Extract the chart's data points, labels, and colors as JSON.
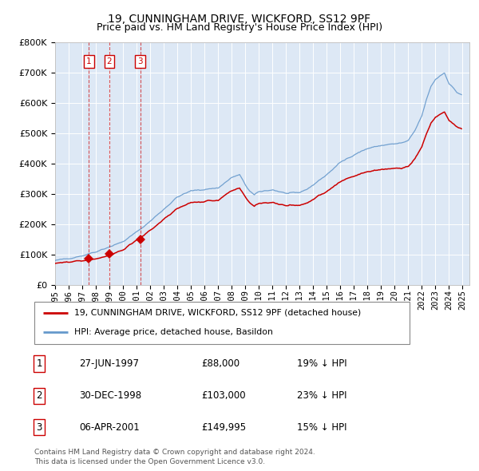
{
  "title": "19, CUNNINGHAM DRIVE, WICKFORD, SS12 9PF",
  "subtitle": "Price paid vs. HM Land Registry's House Price Index (HPI)",
  "legend_line1": "19, CUNNINGHAM DRIVE, WICKFORD, SS12 9PF (detached house)",
  "legend_line2": "HPI: Average price, detached house, Basildon",
  "footer1": "Contains HM Land Registry data © Crown copyright and database right 2024.",
  "footer2": "This data is licensed under the Open Government Licence v3.0.",
  "ylim": [
    0,
    800000
  ],
  "yticks": [
    0,
    100000,
    200000,
    300000,
    400000,
    500000,
    600000,
    700000,
    800000
  ],
  "xlim_start": 1995.0,
  "xlim_end": 2025.5,
  "red_color": "#cc0000",
  "blue_color": "#6699cc",
  "bg_color": "#dde8f5",
  "grid_color": "#ffffff",
  "vline_color": "#cc0000",
  "sale_dates_display": [
    "27-JUN-1997",
    "30-DEC-1998",
    "06-APR-2001"
  ],
  "sale_prices_display": [
    "£88,000",
    "£103,000",
    "£149,995"
  ],
  "sale_hpi_display": [
    "19% ↓ HPI",
    "23% ↓ HPI",
    "15% ↓ HPI"
  ],
  "sale_prices_num": [
    88000,
    103000,
    149995
  ],
  "sale_years": [
    1997.4863,
    1998.9973,
    2001.263
  ],
  "hpi_anchors_x": [
    0,
    6,
    12,
    18,
    24,
    30,
    36,
    42,
    48,
    54,
    60,
    66,
    72,
    78,
    84,
    90,
    96,
    102,
    108,
    114,
    120,
    126,
    132,
    138,
    144,
    150,
    156,
    160,
    163,
    168,
    172,
    176,
    180,
    186,
    192,
    198,
    204,
    210,
    216,
    222,
    228,
    234,
    240,
    246,
    252,
    258,
    264,
    270,
    276,
    282,
    288,
    294,
    300,
    306,
    312,
    318,
    324,
    328,
    332,
    336,
    340,
    344,
    348,
    352,
    355,
    359
  ],
  "hpi_anchors_y": [
    80000,
    84000,
    88000,
    92000,
    97000,
    103000,
    110000,
    118000,
    126000,
    134000,
    143000,
    158000,
    175000,
    192000,
    210000,
    230000,
    250000,
    270000,
    290000,
    300000,
    310000,
    313000,
    315000,
    318000,
    320000,
    337000,
    354000,
    360000,
    363000,
    330000,
    310000,
    296000,
    307000,
    311000,
    314000,
    308000,
    302000,
    302000,
    305000,
    315000,
    330000,
    347000,
    364000,
    384000,
    404000,
    417000,
    430000,
    440000,
    450000,
    455000,
    460000,
    463000,
    465000,
    468000,
    475000,
    510000,
    558000,
    610000,
    655000,
    678000,
    690000,
    700000,
    665000,
    648000,
    635000,
    628000
  ],
  "price_factor_x": [
    0,
    18,
    30,
    47,
    75,
    100,
    130,
    180,
    230,
    280,
    330,
    359
  ],
  "price_factor_y": [
    0.875,
    0.873,
    0.8,
    0.775,
    0.848,
    0.87,
    0.875,
    0.875,
    0.855,
    0.83,
    0.815,
    0.82
  ],
  "title_fontsize": 10,
  "subtitle_fontsize": 9,
  "tick_fontsize": 8,
  "xtick_fontsize": 7.5
}
